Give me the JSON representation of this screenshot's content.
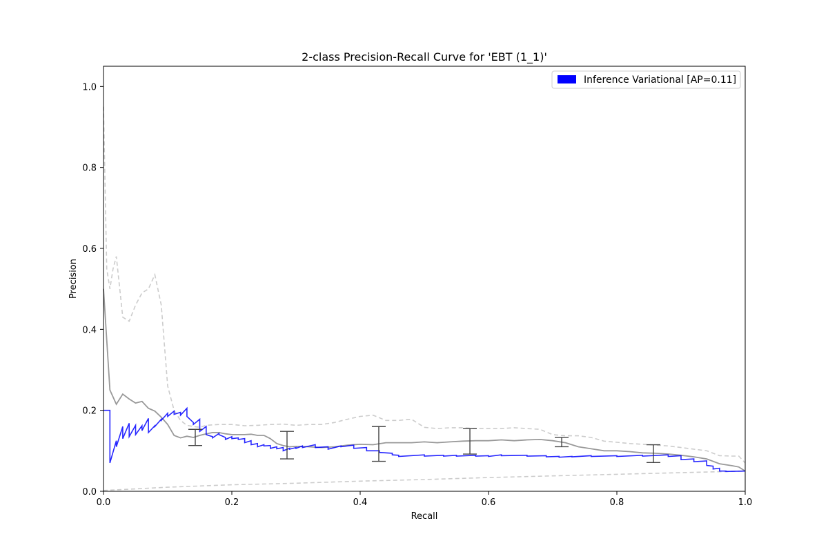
{
  "chart_data": {
    "type": "line",
    "title": "2-class Precision-Recall Curve for 'EBT (1_1)'",
    "xlabel": "Recall",
    "ylabel": "Precision",
    "xlim": [
      0.0,
      1.0
    ],
    "ylim": [
      0.0,
      1.05
    ],
    "xticks": [
      "0.0",
      "0.2",
      "0.4",
      "0.6",
      "0.8",
      "1.0"
    ],
    "yticks": [
      "0.0",
      "0.2",
      "0.4",
      "0.6",
      "0.8",
      "1.0"
    ],
    "grid": false,
    "legend": {
      "placement": "top-right",
      "entries": [
        {
          "label": "Inference Variational [AP=0.11]",
          "color": "#0000ff"
        }
      ]
    },
    "colors": {
      "main": "#0000ff",
      "mean": "#999999",
      "bounds": "#cccccc",
      "errorbar": "#444444"
    },
    "series": [
      {
        "role": "main-step",
        "drawstyle": "steps-post",
        "x": [
          0.0,
          0.01,
          0.01,
          0.02,
          0.02,
          0.03,
          0.03,
          0.04,
          0.04,
          0.05,
          0.05,
          0.06,
          0.06,
          0.07,
          0.07,
          0.08,
          0.08,
          0.09,
          0.09,
          0.1,
          0.1,
          0.11,
          0.11,
          0.12,
          0.12,
          0.13,
          0.13,
          0.14,
          0.14,
          0.15,
          0.15,
          0.16,
          0.16,
          0.17,
          0.17,
          0.18,
          0.18,
          0.19,
          0.19,
          0.2,
          0.2,
          0.21,
          0.21,
          0.22,
          0.22,
          0.23,
          0.23,
          0.24,
          0.24,
          0.25,
          0.25,
          0.26,
          0.26,
          0.27,
          0.27,
          0.28,
          0.28,
          0.29,
          0.29,
          0.3,
          0.3,
          0.31,
          0.31,
          0.33,
          0.33,
          0.35,
          0.35,
          0.37,
          0.37,
          0.39,
          0.39,
          0.41,
          0.41,
          0.43,
          0.43,
          0.45,
          0.45,
          0.46,
          0.46,
          0.5,
          0.5,
          0.53,
          0.53,
          0.55,
          0.55,
          0.58,
          0.58,
          0.6,
          0.6,
          0.62,
          0.62,
          0.66,
          0.66,
          0.69,
          0.69,
          0.71,
          0.71,
          0.73,
          0.73,
          0.76,
          0.76,
          0.8,
          0.8,
          0.84,
          0.84,
          0.88,
          0.88,
          0.9,
          0.9,
          0.92,
          0.92,
          0.94,
          0.94,
          0.95,
          0.95,
          0.96,
          0.96,
          0.97,
          0.97,
          1.0
        ],
        "y": [
          0.2,
          0.2,
          0.07,
          0.125,
          0.11,
          0.16,
          0.13,
          0.168,
          0.135,
          0.163,
          0.14,
          0.162,
          0.15,
          0.18,
          0.145,
          0.162,
          0.16,
          0.178,
          0.175,
          0.193,
          0.185,
          0.198,
          0.19,
          0.195,
          0.188,
          0.205,
          0.185,
          0.17,
          0.165,
          0.178,
          0.148,
          0.16,
          0.14,
          0.135,
          0.132,
          0.143,
          0.14,
          0.133,
          0.128,
          0.135,
          0.13,
          0.132,
          0.128,
          0.13,
          0.12,
          0.125,
          0.115,
          0.118,
          0.11,
          0.115,
          0.112,
          0.113,
          0.106,
          0.11,
          0.105,
          0.108,
          0.1,
          0.106,
          0.104,
          0.108,
          0.106,
          0.112,
          0.108,
          0.115,
          0.108,
          0.11,
          0.104,
          0.112,
          0.11,
          0.114,
          0.106,
          0.108,
          0.1,
          0.1,
          0.096,
          0.094,
          0.09,
          0.089,
          0.086,
          0.09,
          0.087,
          0.089,
          0.087,
          0.089,
          0.087,
          0.089,
          0.087,
          0.088,
          0.086,
          0.09,
          0.088,
          0.089,
          0.087,
          0.088,
          0.085,
          0.086,
          0.084,
          0.086,
          0.085,
          0.088,
          0.086,
          0.088,
          0.086,
          0.089,
          0.087,
          0.09,
          0.086,
          0.088,
          0.078,
          0.08,
          0.073,
          0.075,
          0.064,
          0.062,
          0.055,
          0.057,
          0.05,
          0.05,
          0.049,
          0.05
        ]
      },
      {
        "role": "mean",
        "x": [
          0.0,
          0.01,
          0.02,
          0.03,
          0.04,
          0.05,
          0.06,
          0.07,
          0.08,
          0.09,
          0.1,
          0.11,
          0.12,
          0.13,
          0.14,
          0.15,
          0.16,
          0.17,
          0.18,
          0.19,
          0.2,
          0.21,
          0.22,
          0.23,
          0.24,
          0.25,
          0.26,
          0.27,
          0.28,
          0.29,
          0.3,
          0.32,
          0.34,
          0.36,
          0.38,
          0.4,
          0.42,
          0.44,
          0.46,
          0.48,
          0.5,
          0.52,
          0.54,
          0.56,
          0.58,
          0.6,
          0.62,
          0.64,
          0.66,
          0.68,
          0.7,
          0.72,
          0.74,
          0.76,
          0.78,
          0.8,
          0.82,
          0.84,
          0.86,
          0.88,
          0.9,
          0.92,
          0.94,
          0.96,
          0.98,
          0.99,
          1.0
        ],
        "y": [
          0.5,
          0.25,
          0.215,
          0.24,
          0.228,
          0.218,
          0.222,
          0.205,
          0.198,
          0.183,
          0.165,
          0.138,
          0.132,
          0.136,
          0.133,
          0.138,
          0.142,
          0.145,
          0.145,
          0.142,
          0.14,
          0.14,
          0.14,
          0.141,
          0.138,
          0.138,
          0.13,
          0.118,
          0.113,
          0.11,
          0.111,
          0.11,
          0.108,
          0.11,
          0.114,
          0.116,
          0.115,
          0.12,
          0.12,
          0.12,
          0.122,
          0.12,
          0.122,
          0.124,
          0.125,
          0.125,
          0.127,
          0.125,
          0.127,
          0.128,
          0.125,
          0.12,
          0.11,
          0.105,
          0.1,
          0.1,
          0.098,
          0.095,
          0.094,
          0.092,
          0.089,
          0.085,
          0.08,
          0.068,
          0.063,
          0.06,
          0.05
        ]
      },
      {
        "role": "upper-bound",
        "style": "dashed",
        "x": [
          0.0,
          0.005,
          0.01,
          0.015,
          0.02,
          0.03,
          0.04,
          0.05,
          0.06,
          0.07,
          0.08,
          0.09,
          0.1,
          0.11,
          0.12,
          0.13,
          0.14,
          0.15,
          0.16,
          0.18,
          0.2,
          0.22,
          0.24,
          0.26,
          0.28,
          0.3,
          0.32,
          0.34,
          0.36,
          0.38,
          0.4,
          0.42,
          0.44,
          0.46,
          0.48,
          0.5,
          0.52,
          0.54,
          0.56,
          0.58,
          0.6,
          0.62,
          0.64,
          0.66,
          0.68,
          0.7,
          0.72,
          0.74,
          0.76,
          0.78,
          0.8,
          0.82,
          0.84,
          0.86,
          0.88,
          0.9,
          0.92,
          0.94,
          0.96,
          0.98,
          0.99,
          1.0
        ],
        "y": [
          0.95,
          0.55,
          0.5,
          0.55,
          0.58,
          0.43,
          0.42,
          0.46,
          0.49,
          0.5,
          0.535,
          0.46,
          0.26,
          0.2,
          0.175,
          0.163,
          0.16,
          0.158,
          0.163,
          0.165,
          0.165,
          0.162,
          0.163,
          0.165,
          0.166,
          0.163,
          0.165,
          0.165,
          0.17,
          0.178,
          0.185,
          0.188,
          0.175,
          0.175,
          0.178,
          0.158,
          0.155,
          0.157,
          0.157,
          0.155,
          0.155,
          0.155,
          0.157,
          0.155,
          0.153,
          0.14,
          0.137,
          0.137,
          0.133,
          0.124,
          0.121,
          0.118,
          0.116,
          0.114,
          0.112,
          0.108,
          0.104,
          0.1,
          0.088,
          0.087,
          0.087,
          0.07
        ]
      },
      {
        "role": "lower-bound",
        "style": "dashed",
        "x": [
          0.0,
          0.05,
          0.1,
          0.2,
          0.3,
          0.4,
          0.5,
          0.6,
          0.7,
          0.8,
          0.9,
          1.0
        ],
        "y": [
          0.002,
          0.006,
          0.01,
          0.016,
          0.02,
          0.025,
          0.029,
          0.034,
          0.038,
          0.042,
          0.046,
          0.05
        ]
      }
    ],
    "errorbars": [
      {
        "x": 0.143,
        "low": 0.113,
        "high": 0.153
      },
      {
        "x": 0.286,
        "low": 0.08,
        "high": 0.148
      },
      {
        "x": 0.429,
        "low": 0.074,
        "high": 0.16
      },
      {
        "x": 0.571,
        "low": 0.092,
        "high": 0.155
      },
      {
        "x": 0.714,
        "low": 0.11,
        "high": 0.133
      },
      {
        "x": 0.857,
        "low": 0.071,
        "high": 0.115
      }
    ]
  }
}
